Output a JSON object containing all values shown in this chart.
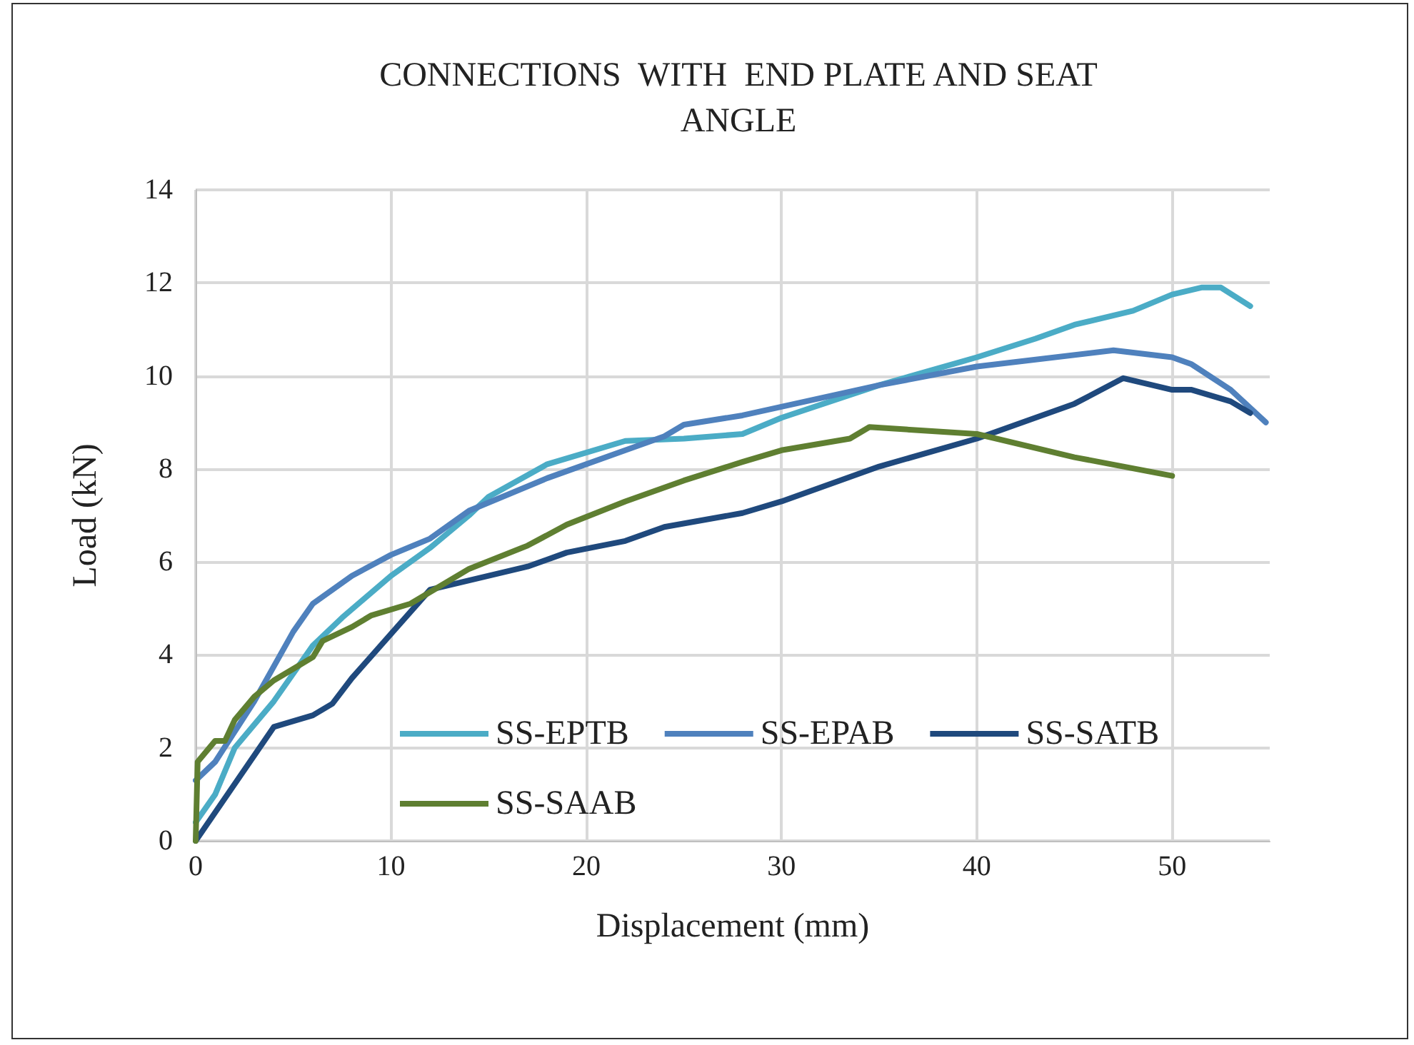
{
  "chart_data": {
    "type": "line",
    "title": "CONNECTIONS  WITH  END PLATE AND SEAT\nANGLE",
    "xlabel": "Displacement (mm)",
    "ylabel": "Load (kN)",
    "xlim": [
      0,
      55
    ],
    "xticks": [
      0,
      10,
      20,
      30,
      40,
      50
    ],
    "ylim": [
      0,
      14
    ],
    "yticks": [
      0,
      2,
      4,
      6,
      8,
      10,
      12,
      14
    ],
    "grid": true,
    "legend": "bottom",
    "marker": "none",
    "line_style": "solid",
    "series": [
      {
        "name": "SS-EPTB",
        "color": "#4bacc6",
        "x": [
          0,
          1,
          2,
          4,
          5,
          6,
          7.5,
          10,
          12,
          14,
          15,
          18,
          22,
          25,
          28,
          30,
          35,
          40,
          43,
          45,
          48,
          50,
          51.5,
          52.5,
          54
        ],
        "values": [
          0.4,
          1.0,
          2.0,
          3.0,
          3.6,
          4.2,
          4.8,
          5.7,
          6.3,
          7.0,
          7.4,
          8.1,
          8.6,
          8.65,
          8.75,
          9.1,
          9.8,
          10.4,
          10.8,
          11.1,
          11.4,
          11.75,
          11.9,
          11.9,
          11.5
        ]
      },
      {
        "name": "SS-EPAB",
        "color": "#4f81bd",
        "x": [
          0,
          1,
          3,
          5,
          6,
          8,
          10,
          12,
          14,
          18,
          22,
          24,
          25,
          28,
          35,
          40,
          47,
          50,
          51,
          53,
          54.8
        ],
        "values": [
          1.3,
          1.7,
          3.0,
          4.5,
          5.1,
          5.7,
          6.15,
          6.5,
          7.1,
          7.8,
          8.4,
          8.7,
          8.95,
          9.15,
          9.8,
          10.2,
          10.55,
          10.4,
          10.25,
          9.7,
          9.0
        ]
      },
      {
        "name": "SS-SATB",
        "color": "#1f497d",
        "x": [
          0,
          4,
          6,
          7,
          8,
          12,
          14,
          17,
          19,
          22,
          24,
          28,
          30,
          35,
          40,
          45,
          47.5,
          50,
          51,
          53,
          54
        ],
        "values": [
          0,
          2.45,
          2.7,
          2.95,
          3.5,
          5.4,
          5.6,
          5.9,
          6.2,
          6.45,
          6.75,
          7.05,
          7.3,
          8.05,
          8.65,
          9.4,
          9.95,
          9.7,
          9.7,
          9.45,
          9.2
        ]
      },
      {
        "name": "SS-SAAB",
        "color": "#5f7f31",
        "x": [
          0,
          0.1,
          1,
          1.5,
          2,
          3,
          4,
          5,
          6,
          6.5,
          8,
          9,
          11,
          13,
          14,
          17,
          19,
          22,
          25,
          28,
          30,
          33.5,
          34.5,
          40,
          45,
          50
        ],
        "values": [
          0,
          1.7,
          2.15,
          2.15,
          2.6,
          3.1,
          3.45,
          3.7,
          3.95,
          4.3,
          4.6,
          4.85,
          5.1,
          5.6,
          5.85,
          6.35,
          6.8,
          7.3,
          7.75,
          8.15,
          8.4,
          8.65,
          8.9,
          8.75,
          8.25,
          7.85
        ]
      }
    ]
  }
}
